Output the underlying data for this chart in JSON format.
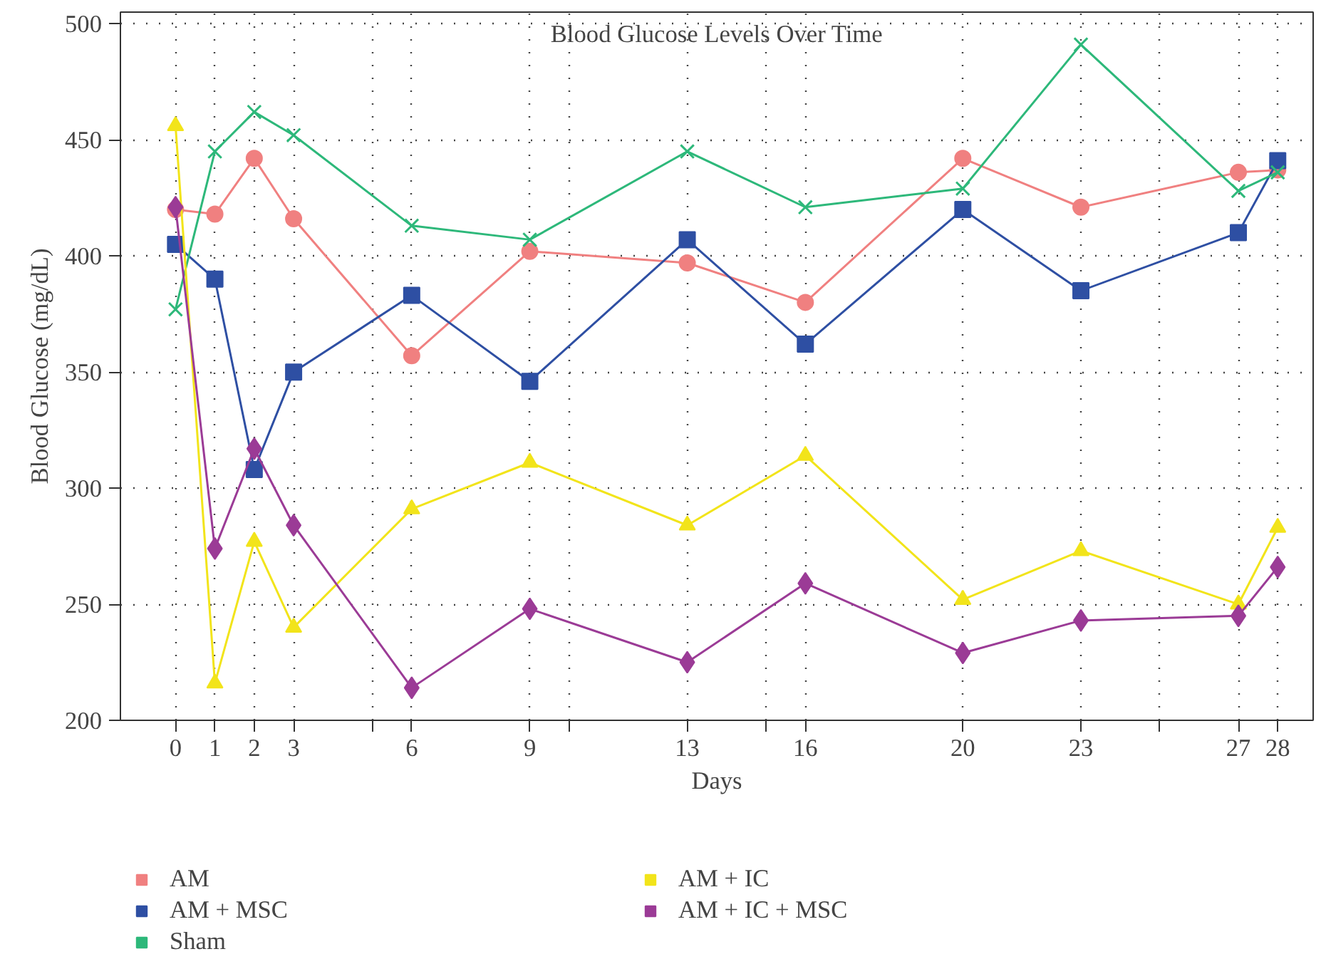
{
  "chart_data": {
    "type": "line",
    "title": "Blood Glucose Levels Over Time",
    "xlabel": "Days",
    "ylabel": "Blood Glucose (mg/dL)",
    "x": [
      0,
      1,
      2,
      3,
      6,
      9,
      13,
      16,
      20,
      23,
      27,
      28
    ],
    "xlim": [
      -1.4,
      28.9
    ],
    "xticks": [
      0,
      1,
      2,
      3,
      {
        "value": 5,
        "label": null
      },
      6,
      9,
      {
        "value": 10,
        "label": null
      },
      13,
      {
        "value": 15,
        "label": null
      },
      16,
      20,
      23,
      {
        "value": 25,
        "label": null
      },
      27,
      28
    ],
    "ylim": [
      200,
      505
    ],
    "yticks": [
      200,
      250,
      300,
      350,
      400,
      450,
      500
    ],
    "grid": true,
    "legend": "bottom",
    "line_style": "solid",
    "series": [
      {
        "name": "AM",
        "color": "#f08080",
        "marker": "circle",
        "values": [
          420,
          418,
          442,
          416,
          357,
          402,
          397,
          380,
          442,
          421,
          436,
          437
        ]
      },
      {
        "name": "AM + MSC",
        "color": "#2e4fa3",
        "marker": "square",
        "values": [
          405,
          390,
          308,
          350,
          383,
          346,
          407,
          362,
          420,
          385,
          410,
          441
        ]
      },
      {
        "name": "Sham",
        "color": "#2db87a",
        "marker": "cross",
        "values": [
          377,
          445,
          462,
          452,
          413,
          407,
          445,
          421,
          429,
          491,
          428,
          436
        ]
      },
      {
        "name": "AM + IC",
        "color": "#f2e41a",
        "marker": "triangle",
        "values": [
          456,
          216,
          277,
          240,
          291,
          311,
          284,
          314,
          252,
          273,
          250,
          283
        ]
      },
      {
        "name": "AM + IC + MSC",
        "color": "#9b3b96",
        "marker": "diamond",
        "values": [
          421,
          274,
          317,
          284,
          214,
          248,
          225,
          259,
          229,
          243,
          245,
          266
        ]
      }
    ]
  }
}
